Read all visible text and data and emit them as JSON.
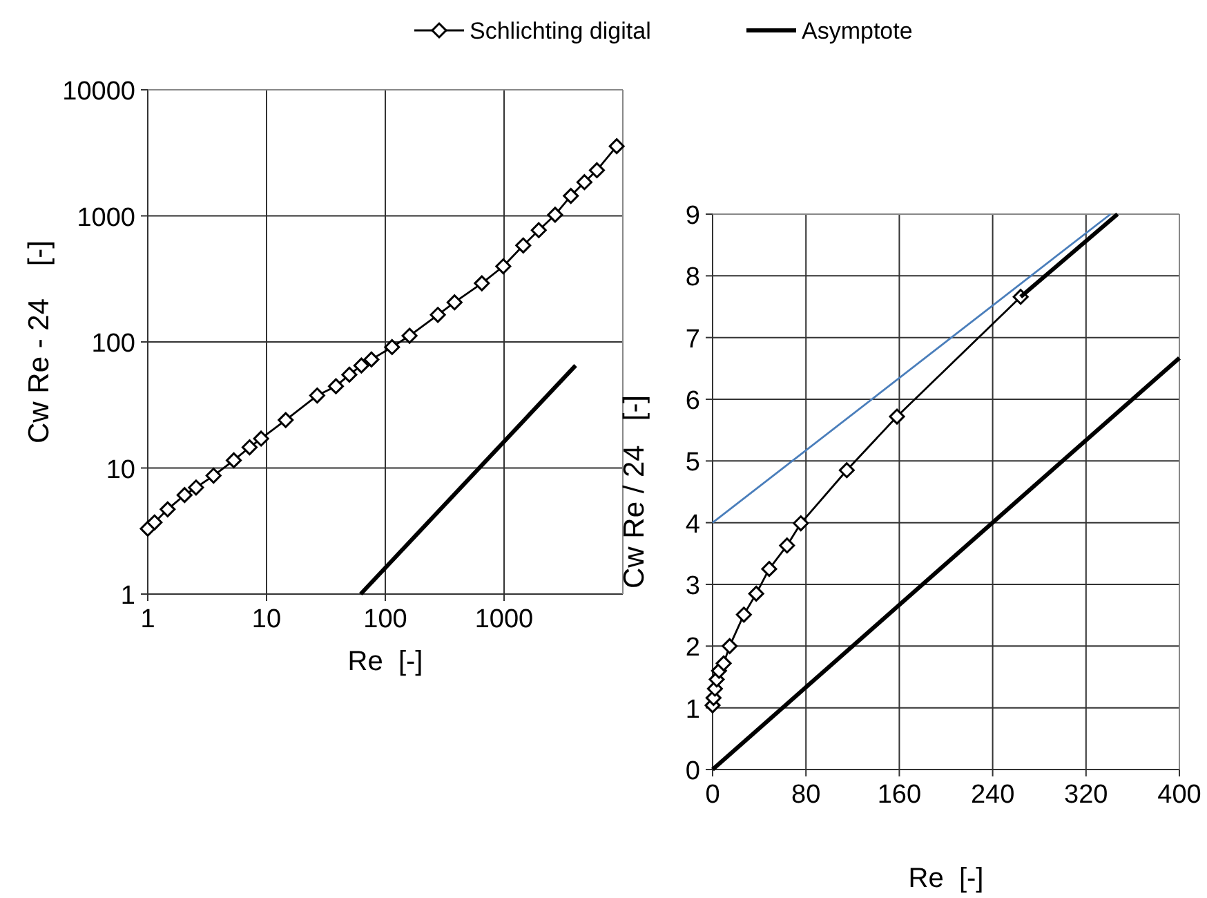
{
  "chart_data": [
    {
      "type": "line",
      "log": "xy",
      "xlabel": "Re  [-]",
      "ylabel": "Cw Re - 24    [-]",
      "xlim": [
        1,
        10000
      ],
      "xticks": [
        1,
        10,
        100,
        1000
      ],
      "ylim": [
        1,
        10000
      ],
      "yticks": [
        1,
        10,
        100,
        1000,
        10000
      ],
      "grid": true,
      "legend": "top",
      "series": [
        {
          "name": "Schlichting digital",
          "color": "#000000",
          "marker": "diamond",
          "x": [
            1,
            1.14,
            1.47,
            2.04,
            2.55,
            3.58,
            5.3,
            7.2,
            9,
            14.5,
            26.7,
            38.4,
            49.8,
            62.9,
            76.4,
            114,
            160,
            277,
            383,
            650,
            985,
            1450,
            1960,
            2690,
            3650,
            4750,
            6050,
            8880
          ],
          "values": [
            3.3,
            3.7,
            4.7,
            6.1,
            7,
            8.7,
            11.5,
            14.6,
            17.1,
            24,
            37.6,
            44.5,
            55,
            65,
            72.6,
            91,
            112,
            164,
            206,
            292,
            398,
            583,
            770,
            1020,
            1440,
            1850,
            2300,
            3570
          ]
        },
        {
          "name": "Asymptote",
          "color": "#000000",
          "marker": "none",
          "x": [
            62,
            4000
          ],
          "values": [
            1,
            65
          ]
        }
      ]
    },
    {
      "type": "line",
      "xlabel": "Re  [-]",
      "ylabel": "Cw Re / 24   [-]",
      "xlim": [
        0,
        400
      ],
      "xticks": [
        0,
        80,
        160,
        240,
        320,
        400
      ],
      "ylim": [
        0,
        9
      ],
      "yticks": [
        0,
        1,
        2,
        3,
        4,
        5,
        6,
        7,
        8,
        9
      ],
      "grid": true,
      "legend": false,
      "series": [
        {
          "color": "#000000",
          "marker": "diamond",
          "x": [
            0,
            0.8,
            2,
            3.5,
            5.5,
            9.5,
            14.6,
            26.8,
            37.4,
            48.5,
            63.8,
            75.6,
            115,
            158,
            264
          ],
          "values": [
            1.04,
            1.16,
            1.31,
            1.46,
            1.6,
            1.72,
            2,
            2.51,
            2.85,
            3.25,
            3.63,
            3.99,
            4.85,
            5.72,
            7.66
          ]
        },
        {
          "color": "#000000",
          "marker": "none",
          "x": [
            264,
            347
          ],
          "values": [
            7.66,
            9
          ]
        },
        {
          "color": "#4a7ebb",
          "marker": "none",
          "x": [
            0,
            341
          ],
          "values": [
            4,
            9
          ]
        },
        {
          "color": "#000000",
          "marker": "none",
          "x": [
            0,
            400
          ],
          "values": [
            0,
            6.67
          ]
        }
      ]
    }
  ]
}
